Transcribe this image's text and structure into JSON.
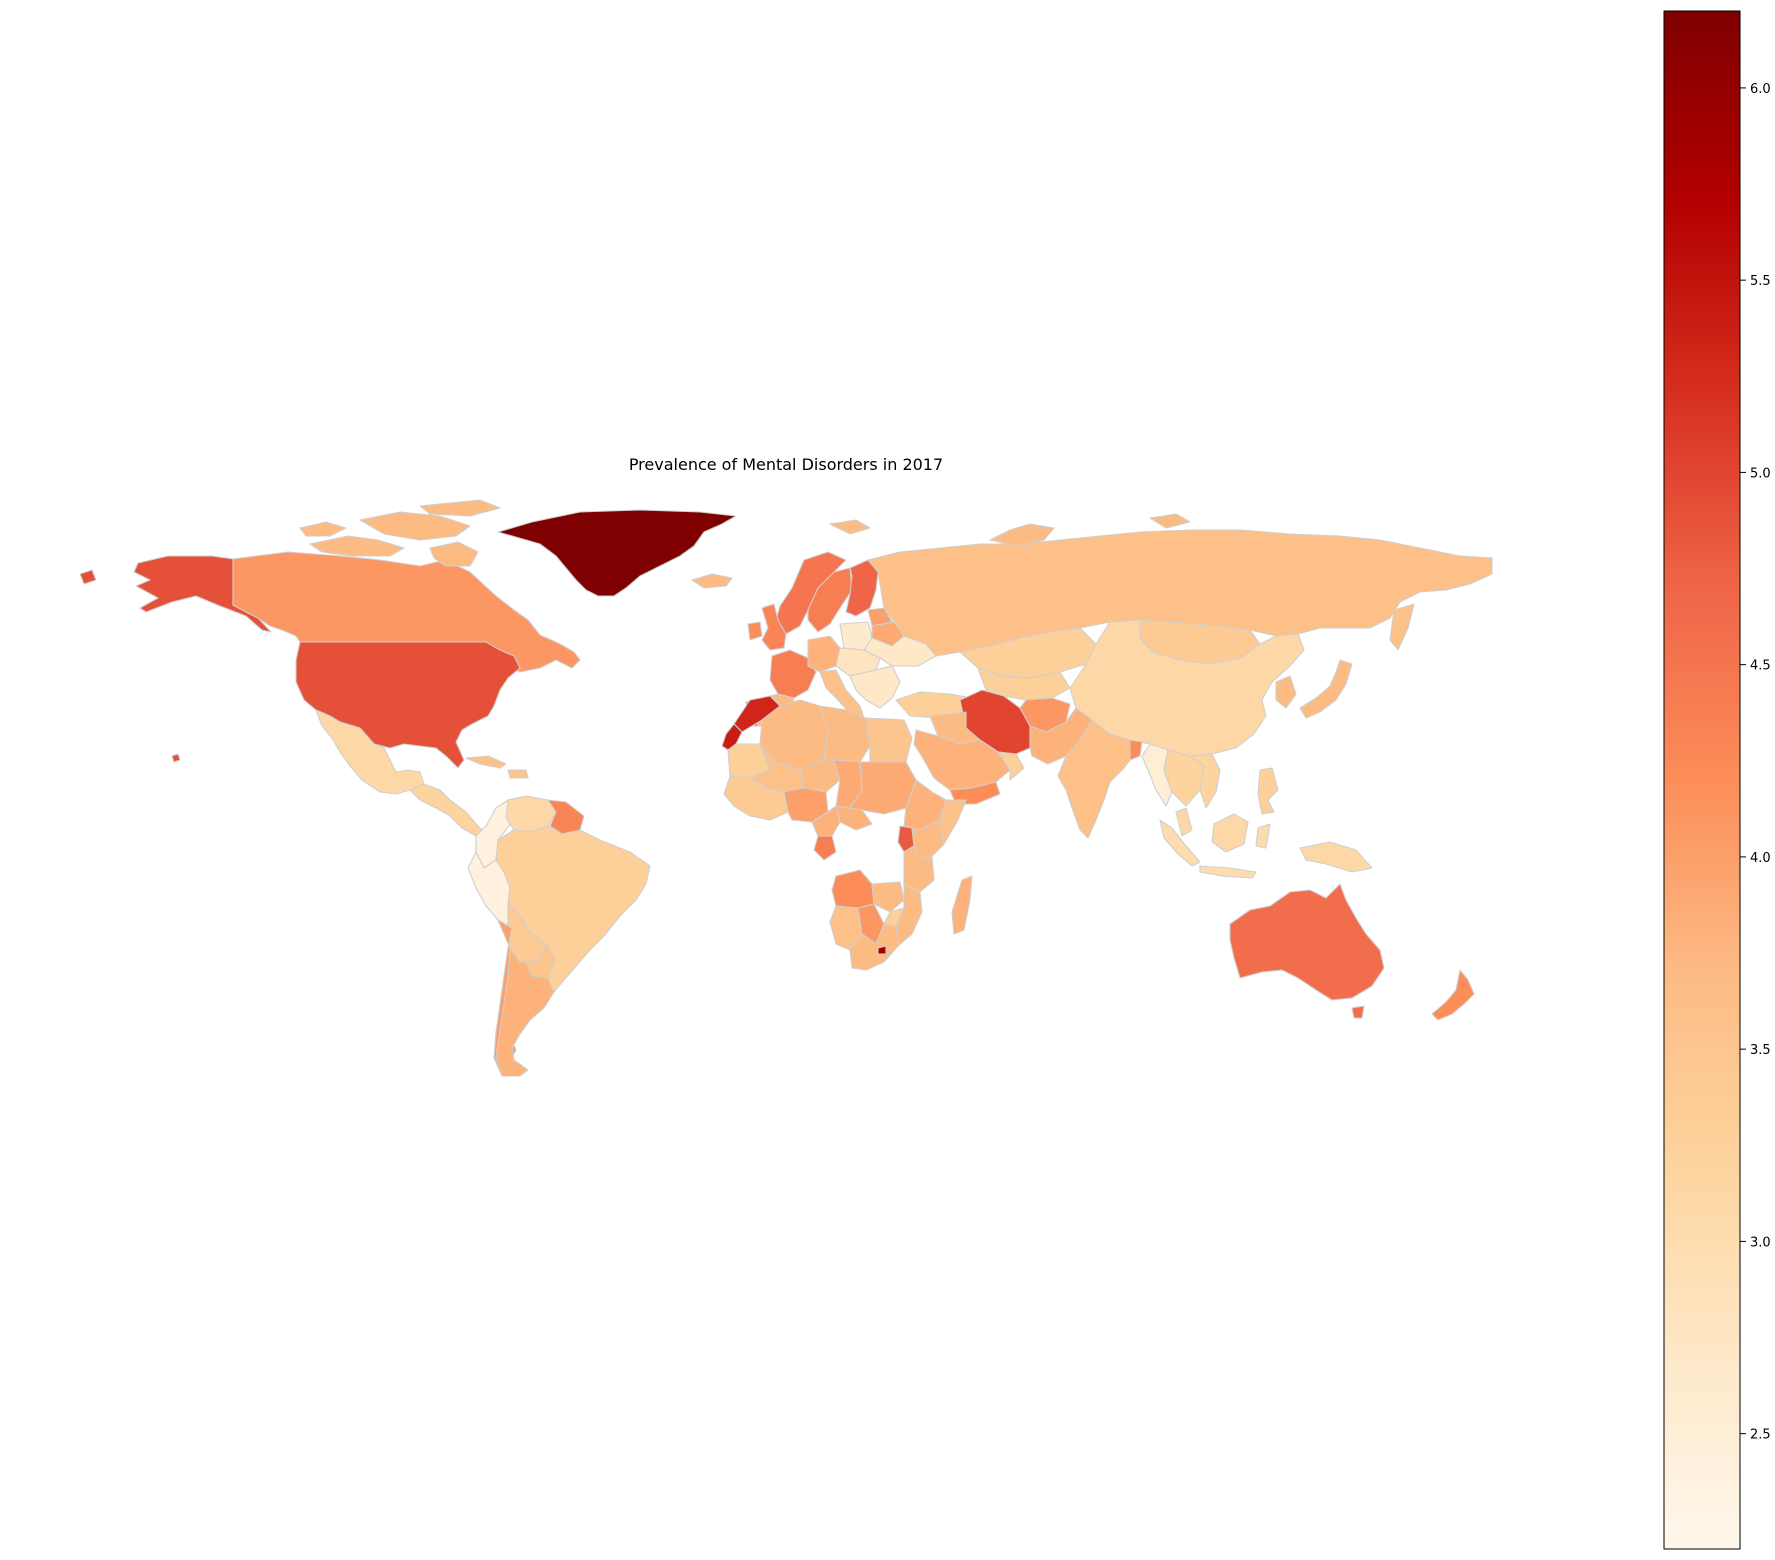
{
  "chart_data": {
    "type": "choropleth",
    "title": "Prevalence of Mental Disorders in 2017",
    "colormap": "OrRd",
    "colorbar": {
      "vmin": 2.2,
      "vmax": 6.2,
      "ticks": [
        2.5,
        3.0,
        3.5,
        4.0,
        4.5,
        5.0,
        5.5,
        6.0
      ],
      "tick_labels": [
        "2.5",
        "3.0",
        "3.5",
        "4.0",
        "4.5",
        "5.0",
        "5.5",
        "6.0"
      ],
      "position": "right"
    },
    "regions": [
      {
        "name": "Greenland",
        "value": 6.2
      },
      {
        "name": "Alaska (United States)",
        "value": 4.9
      },
      {
        "name": "Canada",
        "value": 4.1
      },
      {
        "name": "United States",
        "value": 4.9
      },
      {
        "name": "Mexico",
        "value": 3.1
      },
      {
        "name": "Central America",
        "value": 3.2
      },
      {
        "name": "Colombia",
        "value": 2.4
      },
      {
        "name": "Peru",
        "value": 2.4
      },
      {
        "name": "Venezuela",
        "value": 3.1
      },
      {
        "name": "Guyana",
        "value": 4.3
      },
      {
        "name": "Brazil",
        "value": 3.3
      },
      {
        "name": "Bolivia",
        "value": 3.4
      },
      {
        "name": "Paraguay",
        "value": 3.5
      },
      {
        "name": "Chile",
        "value": 4.0
      },
      {
        "name": "Argentina",
        "value": 3.8
      },
      {
        "name": "Iceland",
        "value": 3.7
      },
      {
        "name": "Norway",
        "value": 4.5
      },
      {
        "name": "Sweden",
        "value": 4.4
      },
      {
        "name": "Finland",
        "value": 4.7
      },
      {
        "name": "United Kingdom",
        "value": 4.3
      },
      {
        "name": "Ireland",
        "value": 4.2
      },
      {
        "name": "France",
        "value": 4.4
      },
      {
        "name": "Spain",
        "value": 3.7
      },
      {
        "name": "Portugal",
        "value": 4.6
      },
      {
        "name": "Germany",
        "value": 3.8
      },
      {
        "name": "Poland",
        "value": 2.6
      },
      {
        "name": "Central Europe",
        "value": 2.8
      },
      {
        "name": "Italy",
        "value": 3.6
      },
      {
        "name": "Balkans",
        "value": 2.7
      },
      {
        "name": "Ukraine",
        "value": 2.7
      },
      {
        "name": "Belarus",
        "value": 3.9
      },
      {
        "name": "Baltic states",
        "value": 4.0
      },
      {
        "name": "Turkey",
        "value": 3.3
      },
      {
        "name": "Russia",
        "value": 3.6
      },
      {
        "name": "Kazakhstan",
        "value": 3.3
      },
      {
        "name": "Central Asia",
        "value": 3.3
      },
      {
        "name": "Mongolia",
        "value": 3.4
      },
      {
        "name": "China",
        "value": 3.1
      },
      {
        "name": "Japan",
        "value": 3.7
      },
      {
        "name": "Korea",
        "value": 3.7
      },
      {
        "name": "Iran",
        "value": 5.0
      },
      {
        "name": "Afghanistan",
        "value": 4.1
      },
      {
        "name": "Pakistan",
        "value": 3.8
      },
      {
        "name": "Iraq",
        "value": 3.7
      },
      {
        "name": "Saudi Arabia",
        "value": 3.8
      },
      {
        "name": "Yemen",
        "value": 4.2
      },
      {
        "name": "Oman",
        "value": 3.3
      },
      {
        "name": "India",
        "value": 3.6
      },
      {
        "name": "Bangladesh",
        "value": 4.2
      },
      {
        "name": "Myanmar",
        "value": 2.5
      },
      {
        "name": "Thailand",
        "value": 3.2
      },
      {
        "name": "Vietnam",
        "value": 3.2
      },
      {
        "name": "Malaysia",
        "value": 3.1
      },
      {
        "name": "Indonesia",
        "value": 3.0
      },
      {
        "name": "Borneo",
        "value": 3.1
      },
      {
        "name": "Philippines",
        "value": 3.3
      },
      {
        "name": "Papua New Guinea",
        "value": 3.1
      },
      {
        "name": "Australia",
        "value": 4.6
      },
      {
        "name": "Tasmania (Australia)",
        "value": 4.6
      },
      {
        "name": "New Zealand",
        "value": 4.2
      },
      {
        "name": "Morocco",
        "value": 5.3
      },
      {
        "name": "Western Sahara",
        "value": 5.4
      },
      {
        "name": "Algeria",
        "value": 3.7
      },
      {
        "name": "Libya",
        "value": 3.7
      },
      {
        "name": "Egypt",
        "value": 3.5
      },
      {
        "name": "Mali",
        "value": 3.6
      },
      {
        "name": "Mauritania",
        "value": 3.3
      },
      {
        "name": "Niger",
        "value": 3.7
      },
      {
        "name": "Chad",
        "value": 3.9
      },
      {
        "name": "Sudan",
        "value": 3.9
      },
      {
        "name": "West Africa",
        "value": 3.4
      },
      {
        "name": "Nigeria",
        "value": 4.0
      },
      {
        "name": "Cameroon",
        "value": 3.8
      },
      {
        "name": "Central African Republic",
        "value": 3.8
      },
      {
        "name": "Ethiopia",
        "value": 3.8
      },
      {
        "name": "Somalia",
        "value": 3.6
      },
      {
        "name": "Uganda",
        "value": 4.8
      },
      {
        "name": "Kenya",
        "value": 3.7
      },
      {
        "name": "Gabon",
        "value": 4.4
      },
      {
        "name": "Tanzania",
        "value": 3.7
      },
      {
        "name": "Angola",
        "value": 4.2
      },
      {
        "name": "Zambia",
        "value": 3.7
      },
      {
        "name": "Mozambique",
        "value": 3.7
      },
      {
        "name": "Zimbabwe",
        "value": 3.3
      },
      {
        "name": "Namibia",
        "value": 3.6
      },
      {
        "name": "Botswana",
        "value": 4.1
      },
      {
        "name": "South Africa",
        "value": 3.7
      },
      {
        "name": "Lesotho",
        "value": 5.8
      },
      {
        "name": "Madagascar",
        "value": 3.8
      },
      {
        "name": "Cuba",
        "value": 3.6
      },
      {
        "name": "Caribbean islands",
        "value": 3.5
      },
      {
        "name": "Hawaii (United States)",
        "value": 4.9
      },
      {
        "name": "Arctic islands",
        "value": 3.7
      }
    ]
  }
}
